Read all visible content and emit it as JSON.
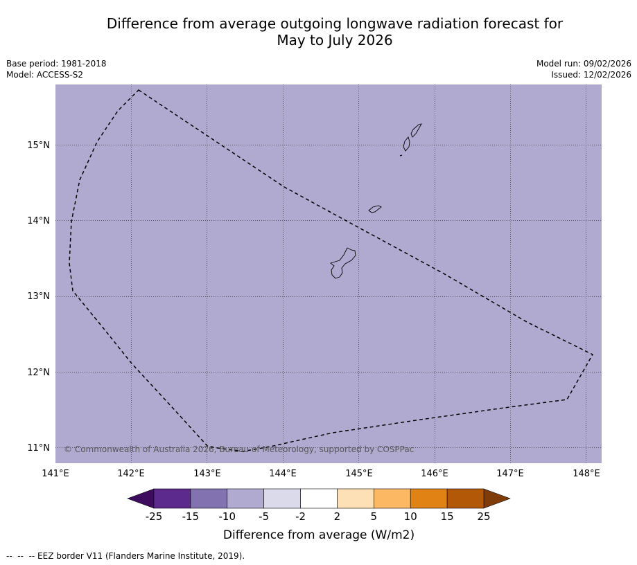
{
  "title_line1": "Difference from average outgoing longwave radiation forecast for",
  "title_line2": "May to July 2026",
  "meta": {
    "base_period": "Base period: 1981-2018",
    "model": "Model: ACCESS-S2",
    "model_run": "Model run: 09/02/2026",
    "issued": "Issued: 12/02/2026"
  },
  "map": {
    "background_color": "#b0aad1",
    "gridlines": "dotted",
    "copyright": "© Commonwealth of Australia 2026, Bureau of Meteorology, supported by COSPPac",
    "lon_ticks": [
      "141°E",
      "142°E",
      "143°E",
      "144°E",
      "145°E",
      "146°E",
      "147°E",
      "148°E"
    ],
    "lat_ticks": [
      "15°N",
      "14°N",
      "13°N",
      "12°N",
      "11°N"
    ],
    "lon_range": [
      141,
      148.2
    ],
    "lat_range": [
      10.8,
      15.8
    ],
    "islands": [
      "Guam",
      "Rota",
      "Tinian",
      "Saipan"
    ]
  },
  "colorbar": {
    "labels": [
      "-25",
      "-15",
      "-10",
      "-5",
      "-2",
      "2",
      "5",
      "10",
      "15",
      "25"
    ],
    "colors": [
      "#5b2a8c",
      "#8273b0",
      "#b0aad1",
      "#dadaeb",
      "#ffffff",
      "#fee0b6",
      "#fdb863",
      "#e08214",
      "#b35806"
    ],
    "under_color": "#3d0c5e",
    "over_color": "#7f3b08",
    "title": "Difference from average (W/m2)"
  },
  "footnote": "--  --  -- EEZ border V11 (Flanders Marine Institute, 2019)."
}
